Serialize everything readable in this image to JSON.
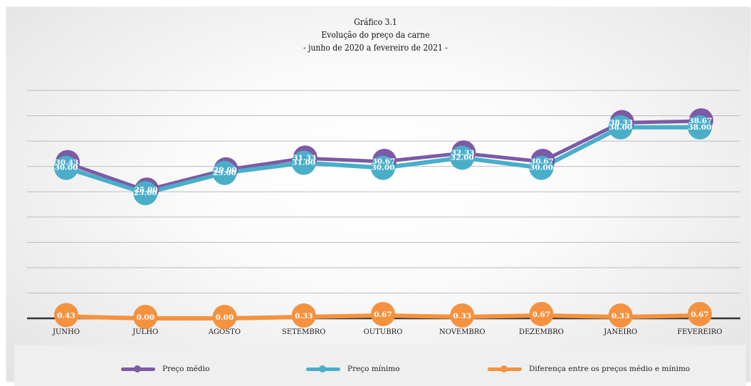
{
  "chart_data": {
    "type": "line",
    "title": "Gráfico 3.1",
    "subtitle_1": "Evolução do preço da carne",
    "subtitle_2": "- junho de 2020 a fevereiro de 2021 -",
    "categories": [
      "JUNHO",
      "JULHO",
      "AGOSTO",
      "SETEMBRO",
      "OUTUBRO",
      "NOVEMBRO",
      "DEZEMBRO",
      "JANEIRO",
      "FEVEREIRO"
    ],
    "series": [
      {
        "name": "Preço médio",
        "color": "#7b5aa6",
        "values": [
          30.43,
          25.0,
          29.0,
          31.33,
          30.67,
          32.33,
          30.67,
          38.33,
          38.67
        ],
        "labels": [
          "30.43",
          "25.00",
          "29.00",
          "31.33",
          "30.67",
          "32.33",
          "30.67",
          "38.33",
          "38.67"
        ]
      },
      {
        "name": "Preço mínimo",
        "color": "#4aaec9",
        "values": [
          30.0,
          25.0,
          29.0,
          31.0,
          30.0,
          32.0,
          30.0,
          38.0,
          38.0
        ],
        "labels": [
          "30.00",
          "25.00",
          "29.00",
          "31.00",
          "30.00",
          "32.00",
          "30.00",
          "38.00",
          "38.00"
        ]
      },
      {
        "name": "Diferença entre os preços médio e mínimo",
        "color": "#f4923f",
        "values": [
          0.43,
          0.0,
          0.0,
          0.33,
          0.67,
          0.33,
          0.67,
          0.33,
          0.67
        ],
        "labels": [
          "0.43",
          "0.00",
          "0.00",
          "0.33",
          "0.67",
          "0.33",
          "0.67",
          "0.33",
          "0.67"
        ]
      }
    ],
    "ylim": [
      0,
      45
    ],
    "grid": true,
    "legend": "bottom"
  }
}
